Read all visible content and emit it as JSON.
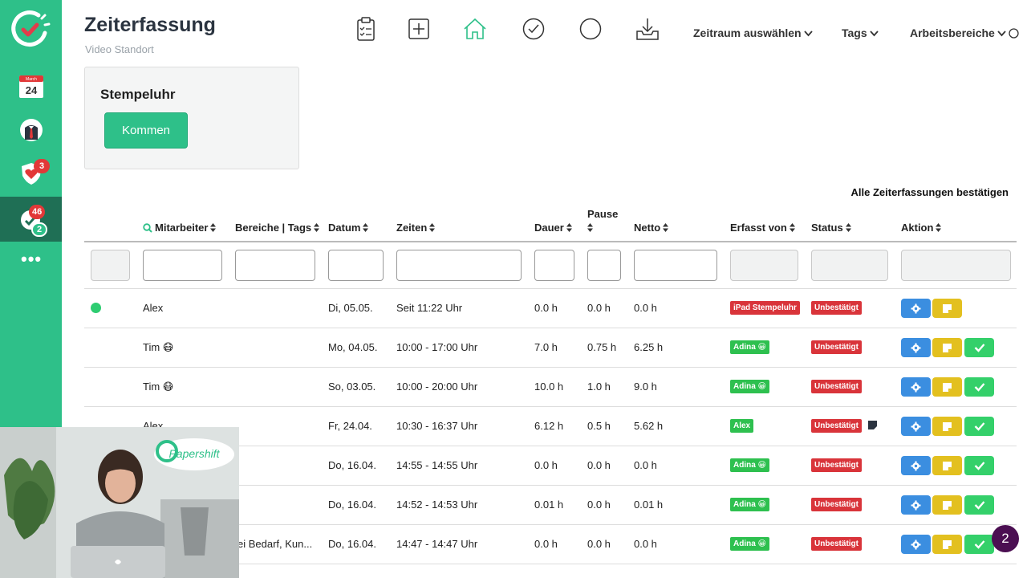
{
  "header": {
    "title": "Zeiterfassung",
    "subtitle": "Video Standort",
    "menus": [
      "Zeitraum auswählen",
      "Tags",
      "Arbeitsbereiche"
    ]
  },
  "sidebar": {
    "calendar_month": "March",
    "calendar_day": "24",
    "badges": {
      "health": "3",
      "chat_red": "46",
      "chat_green": "2"
    },
    "more": "•••"
  },
  "stempeluhr": {
    "title": "Stempeluhr",
    "button": "Kommen"
  },
  "table": {
    "confirm_all": "Alle Zeiterfassungen bestätigen",
    "columns": {
      "mitarbeiter": "Mitarbeiter",
      "bereiche": "Bereiche | Tags",
      "datum": "Datum",
      "zeiten": "Zeiten",
      "dauer": "Dauer",
      "pause": "Pause",
      "netto": "Netto",
      "erfasst": "Erfasst von",
      "status": "Status",
      "aktion": "Aktion"
    },
    "rows": [
      {
        "name": "Alex",
        "tags": "",
        "datum": "Di, 05.05.",
        "zeiten": "Seit 11:22 Uhr",
        "dauer": "0.0 h",
        "pause": "0.0 h",
        "netto": "0.0 h",
        "erfasst": "iPad Stempeluhr",
        "status": "Unbestätigt",
        "online": true
      },
      {
        "name": "Tim 😷",
        "tags": "",
        "datum": "Mo, 04.05.",
        "zeiten": "10:00 - 17:00 Uhr",
        "dauer": "7.0 h",
        "pause": "0.75 h",
        "netto": "6.25 h",
        "erfasst": "Adina 😀",
        "status": "Unbestätigt"
      },
      {
        "name": "Tim 😷",
        "tags": "",
        "datum": "So, 03.05.",
        "zeiten": "10:00 - 20:00 Uhr",
        "dauer": "10.0 h",
        "pause": "1.0 h",
        "netto": "9.0 h",
        "erfasst": "Adina 😀",
        "status": "Unbestätigt"
      },
      {
        "name": "Alex",
        "tags": "",
        "datum": "Fr, 24.04.",
        "zeiten": "10:30 - 16:37 Uhr",
        "dauer": "6.12 h",
        "pause": "0.5 h",
        "netto": "5.62 h",
        "erfasst": "Alex",
        "status": "Unbestätigt",
        "note": true
      },
      {
        "name": "",
        "tags": "",
        "datum": "Do, 16.04.",
        "zeiten": "14:55 - 14:55 Uhr",
        "dauer": "0.0 h",
        "pause": "0.0 h",
        "netto": "0.0 h",
        "erfasst": "Adina 😀",
        "status": "Unbestätigt"
      },
      {
        "name": "",
        "tags": "",
        "datum": "Do, 16.04.",
        "zeiten": "14:52 - 14:53 Uhr",
        "dauer": "0.01 h",
        "pause": "0.0 h",
        "netto": "0.01 h",
        "erfasst": "Adina 😀",
        "status": "Unbestätigt"
      },
      {
        "name": "",
        "tags": "ei Bedarf, Kun...",
        "datum": "Do, 16.04.",
        "zeiten": "14:47 - 14:47 Uhr",
        "dauer": "0.0 h",
        "pause": "0.0 h",
        "netto": "0.0 h",
        "erfasst": "Adina 😀",
        "status": "Unbestätigt"
      }
    ]
  },
  "fab": {
    "count": "2"
  },
  "colors": {
    "brand": "#2ec089",
    "active": "#1f6f55",
    "danger": "#d9343a",
    "success": "#2ec04f",
    "info": "#3b8ee0",
    "warn": "#e3c01f"
  }
}
